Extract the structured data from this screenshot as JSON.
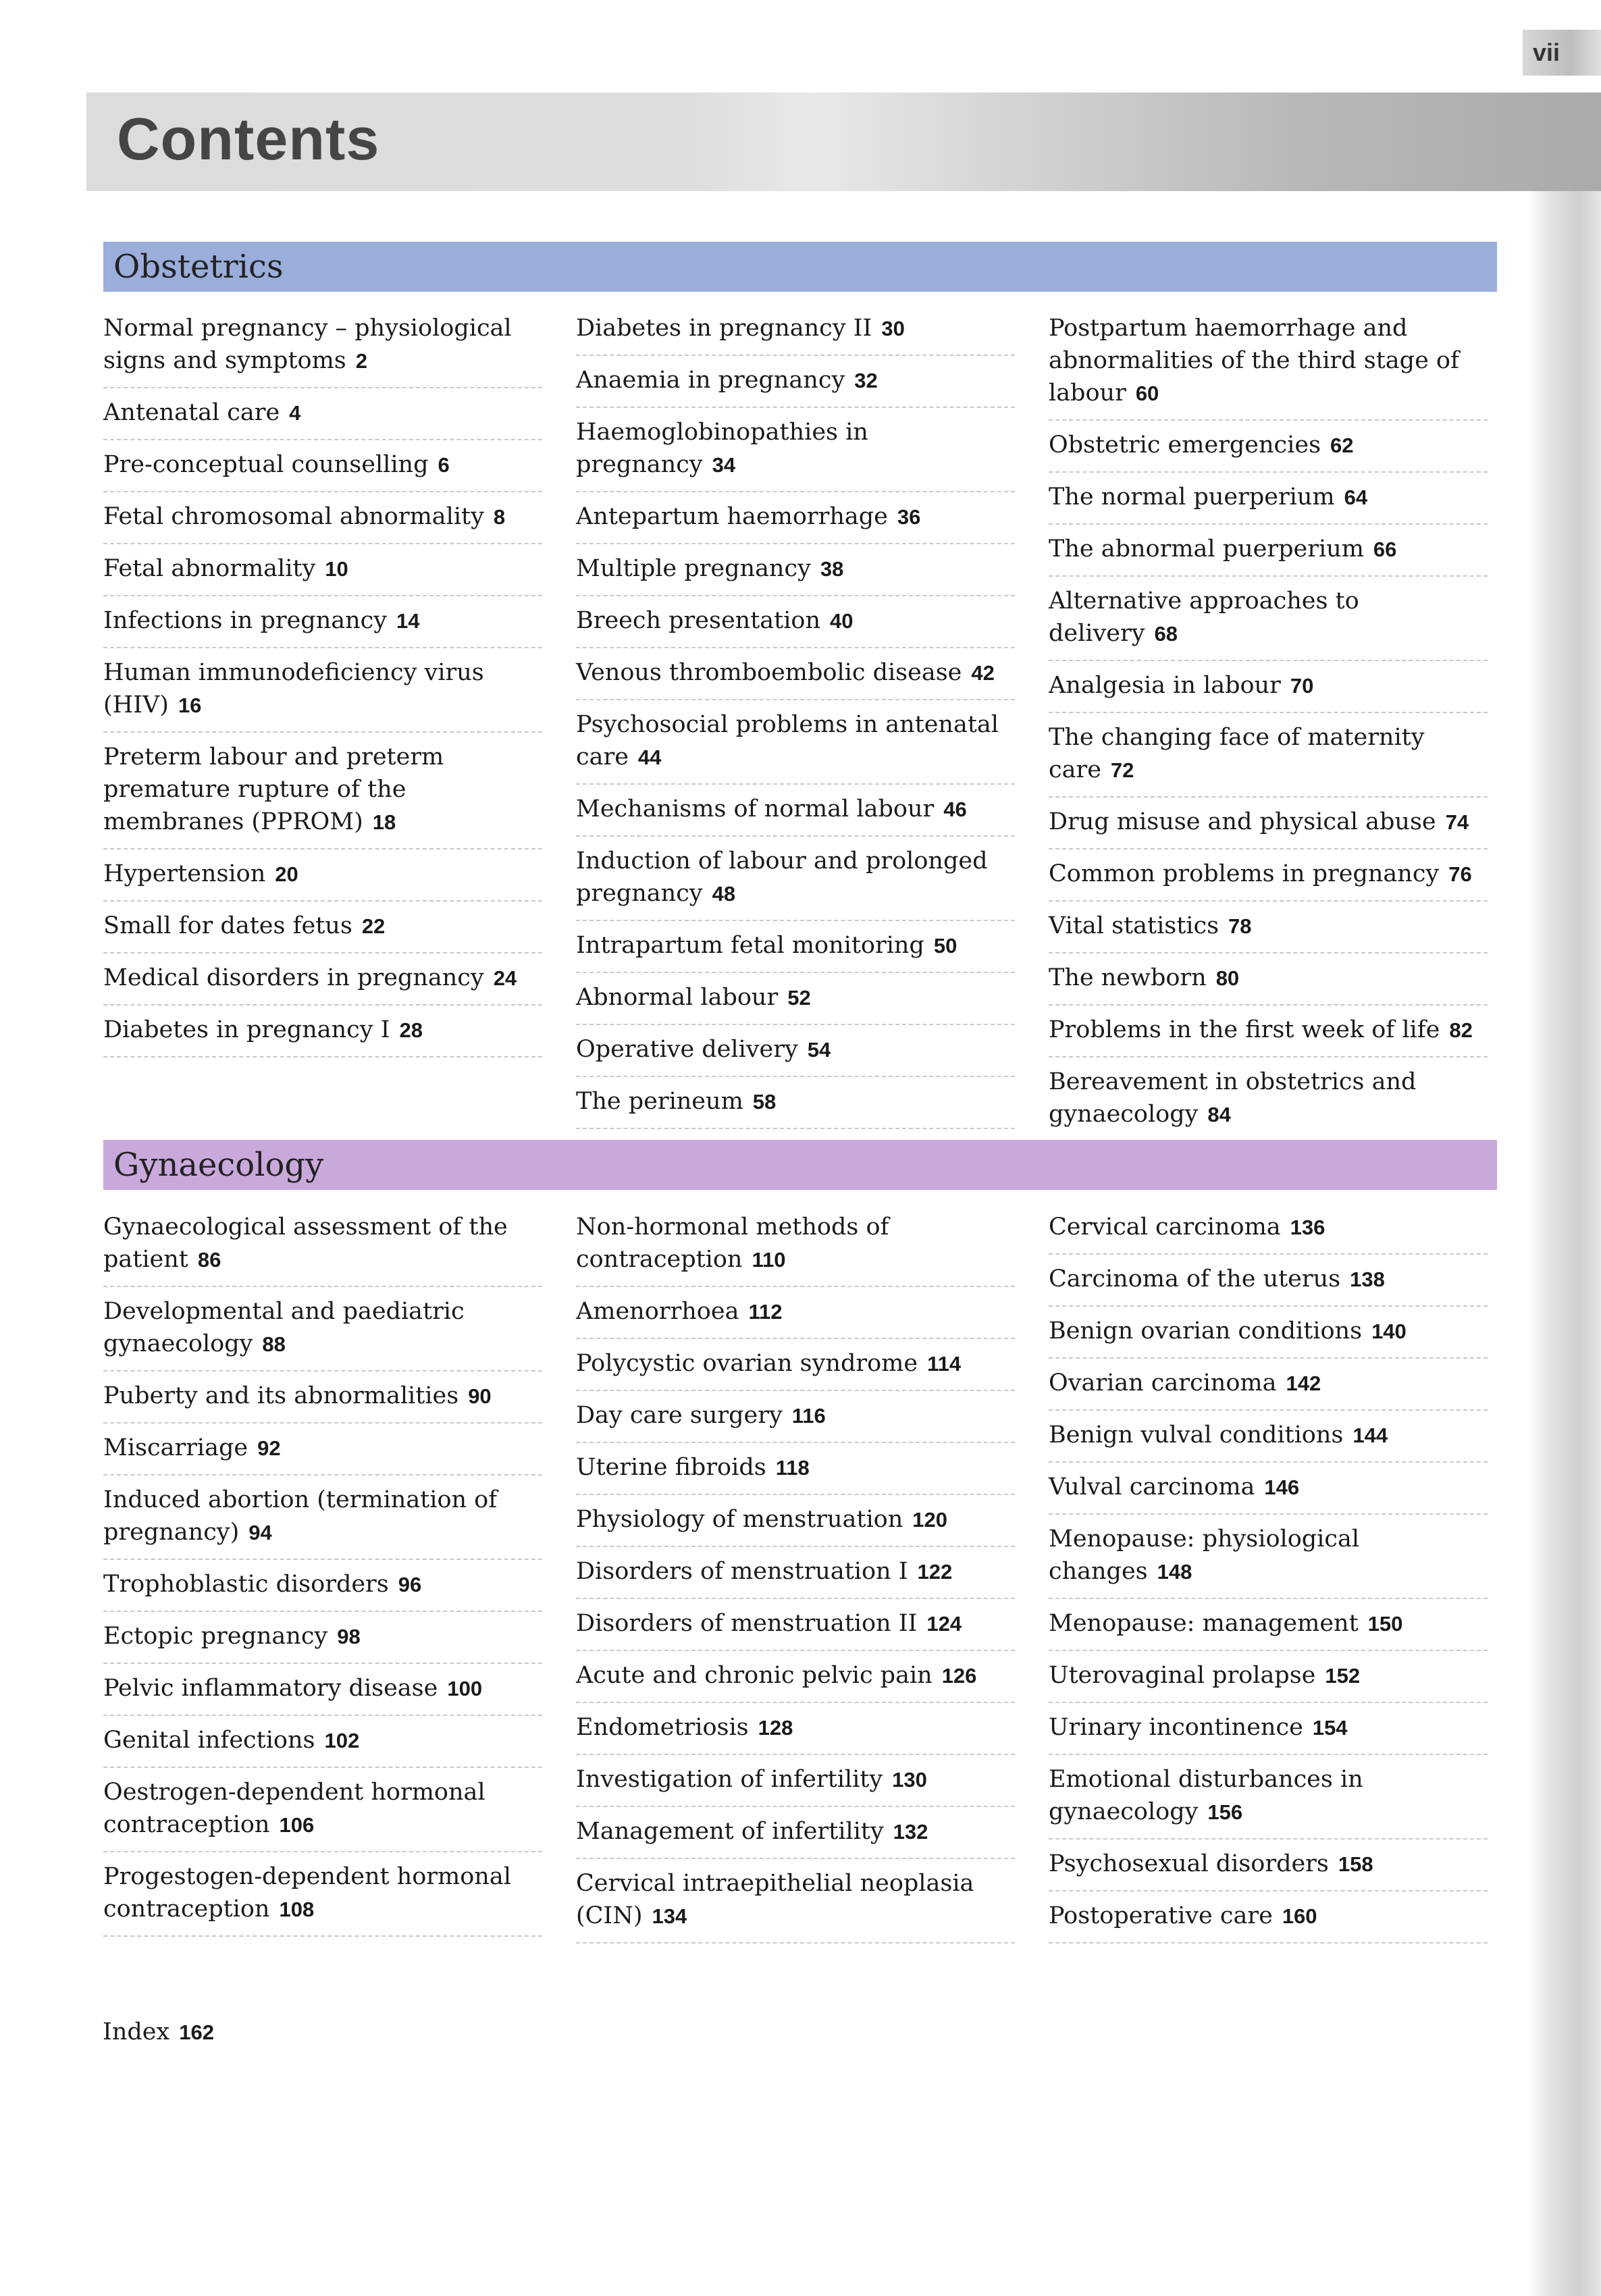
{
  "page_number": "vii",
  "title": "Contents",
  "sections": [
    {
      "name": "Obstetrics",
      "color": "#9aaddb",
      "columns": [
        [
          {
            "t": "Normal pregnancy – physiological signs and symptoms",
            "p": "2"
          },
          {
            "t": "Antenatal care",
            "p": "4"
          },
          {
            "t": "Pre-conceptual counselling",
            "p": "6"
          },
          {
            "t": "Fetal chromosomal abnormality",
            "p": "8"
          },
          {
            "t": "Fetal abnormality",
            "p": "10"
          },
          {
            "t": "Infections in pregnancy",
            "p": "14"
          },
          {
            "t": "Human immunodeficiency virus (HIV)",
            "p": "16"
          },
          {
            "t": "Preterm labour and preterm premature rupture of the membranes (PPROM)",
            "p": "18"
          },
          {
            "t": "Hypertension",
            "p": "20"
          },
          {
            "t": "Small for dates fetus",
            "p": "22"
          },
          {
            "t": "Medical disorders in pregnancy",
            "p": "24"
          },
          {
            "t": "Diabetes in pregnancy I",
            "p": "28"
          }
        ],
        [
          {
            "t": "Diabetes in pregnancy II",
            "p": "30"
          },
          {
            "t": "Anaemia in pregnancy",
            "p": "32"
          },
          {
            "t": "Haemoglobinopathies in pregnancy",
            "p": "34"
          },
          {
            "t": "Antepartum haemorrhage",
            "p": "36"
          },
          {
            "t": "Multiple pregnancy",
            "p": "38"
          },
          {
            "t": "Breech presentation",
            "p": "40"
          },
          {
            "t": "Venous thromboembolic disease",
            "p": "42"
          },
          {
            "t": "Psychosocial problems in antenatal care",
            "p": "44"
          },
          {
            "t": "Mechanisms of normal labour",
            "p": "46"
          },
          {
            "t": "Induction of labour and prolonged pregnancy",
            "p": "48"
          },
          {
            "t": "Intrapartum fetal monitoring",
            "p": "50"
          },
          {
            "t": "Abnormal labour",
            "p": "52"
          },
          {
            "t": "Operative delivery",
            "p": "54"
          },
          {
            "t": "The perineum",
            "p": "58"
          }
        ],
        [
          {
            "t": "Postpartum haemorrhage and abnormalities of the third stage of labour",
            "p": "60"
          },
          {
            "t": "Obstetric emergencies",
            "p": "62"
          },
          {
            "t": "The normal puerperium",
            "p": "64"
          },
          {
            "t": "The abnormal puerperium",
            "p": "66"
          },
          {
            "t": "Alternative approaches to delivery",
            "p": "68"
          },
          {
            "t": "Analgesia in labour",
            "p": "70"
          },
          {
            "t": "The changing face of maternity care",
            "p": "72"
          },
          {
            "t": "Drug misuse and physical abuse",
            "p": "74"
          },
          {
            "t": "Common problems in pregnancy",
            "p": "76"
          },
          {
            "t": "Vital statistics",
            "p": "78"
          },
          {
            "t": "The newborn",
            "p": "80"
          },
          {
            "t": "Problems in the first week of life",
            "p": "82"
          },
          {
            "t": "Bereavement in obstetrics and gynaecology",
            "p": "84"
          }
        ]
      ]
    },
    {
      "name": "Gynaecology",
      "color": "#c9a9dc",
      "columns": [
        [
          {
            "t": "Gynaecological assessment of the patient",
            "p": "86"
          },
          {
            "t": "Developmental and paediatric gynaecology",
            "p": "88"
          },
          {
            "t": "Puberty and its abnormalities",
            "p": "90"
          },
          {
            "t": "Miscarriage",
            "p": "92"
          },
          {
            "t": "Induced abortion (termination of pregnancy)",
            "p": "94"
          },
          {
            "t": "Trophoblastic disorders",
            "p": "96"
          },
          {
            "t": "Ectopic pregnancy",
            "p": "98"
          },
          {
            "t": "Pelvic inflammatory disease",
            "p": "100"
          },
          {
            "t": "Genital infections",
            "p": "102"
          },
          {
            "t": "Oestrogen-dependent hormonal contraception",
            "p": "106"
          },
          {
            "t": "Progestogen-dependent hormonal contraception",
            "p": "108"
          }
        ],
        [
          {
            "t": "Non-hormonal methods of contraception",
            "p": "110"
          },
          {
            "t": "Amenorrhoea",
            "p": "112"
          },
          {
            "t": "Polycystic ovarian syndrome",
            "p": "114"
          },
          {
            "t": "Day care surgery",
            "p": "116"
          },
          {
            "t": "Uterine fibroids",
            "p": "118"
          },
          {
            "t": "Physiology of menstruation",
            "p": "120"
          },
          {
            "t": "Disorders of menstruation I",
            "p": "122"
          },
          {
            "t": "Disorders of menstruation II",
            "p": "124"
          },
          {
            "t": "Acute and chronic pelvic pain",
            "p": "126"
          },
          {
            "t": "Endometriosis",
            "p": "128"
          },
          {
            "t": "Investigation of infertility",
            "p": "130"
          },
          {
            "t": "Management of infertility",
            "p": "132"
          },
          {
            "t": "Cervical intraepithelial neoplasia (CIN)",
            "p": "134"
          }
        ],
        [
          {
            "t": "Cervical carcinoma",
            "p": "136"
          },
          {
            "t": "Carcinoma of the uterus",
            "p": "138"
          },
          {
            "t": "Benign ovarian conditions",
            "p": "140"
          },
          {
            "t": "Ovarian carcinoma",
            "p": "142"
          },
          {
            "t": "Benign vulval conditions",
            "p": "144"
          },
          {
            "t": "Vulval carcinoma",
            "p": "146"
          },
          {
            "t": "Menopause: physiological changes",
            "p": "148"
          },
          {
            "t": "Menopause: management",
            "p": "150"
          },
          {
            "t": "Uterovaginal prolapse",
            "p": "152"
          },
          {
            "t": "Urinary incontinence",
            "p": "154"
          },
          {
            "t": "Emotional disturbances in gynaecology",
            "p": "156"
          },
          {
            "t": "Psychosexual disorders",
            "p": "158"
          },
          {
            "t": "Postoperative care",
            "p": "160"
          }
        ]
      ]
    }
  ],
  "index": {
    "t": "Index",
    "p": "162"
  }
}
